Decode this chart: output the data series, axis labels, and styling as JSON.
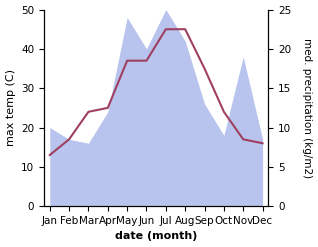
{
  "months": [
    "Jan",
    "Feb",
    "Mar",
    "Apr",
    "May",
    "Jun",
    "Jul",
    "Aug",
    "Sep",
    "Oct",
    "Nov",
    "Dec"
  ],
  "x": [
    0,
    1,
    2,
    3,
    4,
    5,
    6,
    7,
    8,
    9,
    10,
    11
  ],
  "max_temp": [
    13,
    17,
    24,
    25,
    37,
    37,
    45,
    45,
    35,
    24,
    17,
    16
  ],
  "precipitation": [
    10,
    8.5,
    8,
    12,
    24,
    20,
    25,
    21,
    13,
    9,
    19,
    8.5
  ],
  "temp_color": "#a04060",
  "precip_fill_color": "#b8c4ee",
  "ylabel_left": "max temp (C)",
  "ylabel_right": "med. precipitation (kg/m2)",
  "xlabel": "date (month)",
  "ylim_left": [
    0,
    50
  ],
  "ylim_right": [
    0,
    25
  ],
  "bg_color": "#ffffff",
  "label_fontsize": 8,
  "tick_fontsize": 7.5
}
